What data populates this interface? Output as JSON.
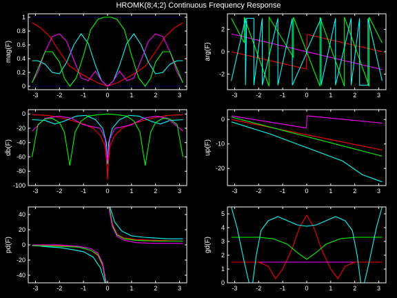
{
  "figure": {
    "title": "HROMK(8;4;2) Continuous Frequency Response",
    "background": "#000000",
    "axes_color": "#ffffff"
  },
  "series_colors": {
    "cyan": "#00ffff",
    "red": "#ff0000",
    "green": "#00ff00",
    "magenta": "#ff00ff",
    "blue": "#0000ff"
  },
  "chart_data": [
    {
      "id": "mag",
      "type": "line",
      "ylabel": "mag(F)",
      "xlim": [
        -3.3,
        3.3
      ],
      "ylim": [
        -0.05,
        1.05
      ],
      "xticks": [
        -3,
        -2,
        -1,
        0,
        1,
        2,
        3
      ],
      "yticks": [
        0,
        0.2,
        0.4,
        0.6,
        0.8,
        1
      ],
      "ytick_labels": [
        "0",
        "0.2",
        "0.4",
        "0.6",
        "0.8",
        "1"
      ],
      "series": [
        {
          "color": "#0000ff",
          "x": [
            -3.14,
            3.14
          ],
          "y": [
            1.0,
            1.0
          ]
        },
        {
          "color": "#0000ff",
          "x": [
            -3.14,
            3.14
          ],
          "y": [
            0.0,
            0.0
          ]
        },
        {
          "color": "#ff0000",
          "x": [
            -3.14,
            -2.8,
            -2.4,
            -2.0,
            -1.6,
            -1.2,
            -0.8,
            -0.4,
            0,
            0.4,
            0.8,
            1.2,
            1.6,
            2.0,
            2.4,
            2.8,
            3.14
          ],
          "y": [
            0.92,
            0.85,
            0.72,
            0.5,
            0.3,
            0.2,
            0.12,
            0.05,
            0.0,
            0.05,
            0.12,
            0.2,
            0.3,
            0.5,
            0.72,
            0.85,
            0.92
          ]
        },
        {
          "color": "#00ffff",
          "x": [
            -3.14,
            -2.9,
            -2.6,
            -2.3,
            -2.0,
            -1.7,
            -1.4,
            -1.1,
            -0.8,
            -0.5,
            -0.25,
            0,
            0.25,
            0.5,
            0.8,
            1.1,
            1.4,
            1.7,
            2.0,
            2.3,
            2.6,
            2.9,
            3.14
          ],
          "y": [
            0.37,
            0.37,
            0.32,
            0.2,
            0.18,
            0.35,
            0.6,
            0.76,
            0.62,
            0.3,
            0.08,
            0.0,
            0.08,
            0.3,
            0.62,
            0.76,
            0.6,
            0.35,
            0.18,
            0.2,
            0.32,
            0.37,
            0.37
          ]
        },
        {
          "color": "#ff00ff",
          "x": [
            -3.14,
            -2.9,
            -2.6,
            -2.3,
            -2.0,
            -1.7,
            -1.4,
            -1.1,
            -0.8,
            -0.5,
            -0.25,
            0,
            0.25,
            0.5,
            0.8,
            1.1,
            1.4,
            1.7,
            2.0,
            2.3,
            2.6,
            2.9,
            3.14
          ],
          "y": [
            0.05,
            0.2,
            0.5,
            0.72,
            0.76,
            0.65,
            0.38,
            0.12,
            0.08,
            0.22,
            0.08,
            0.0,
            0.08,
            0.22,
            0.08,
            0.12,
            0.38,
            0.65,
            0.76,
            0.72,
            0.5,
            0.2,
            0.05
          ]
        },
        {
          "color": "#00ff00",
          "x": [
            -3.14,
            -2.9,
            -2.6,
            -2.3,
            -2.0,
            -1.8,
            -1.57,
            -1.3,
            -1.0,
            -0.7,
            -0.4,
            -0.15,
            0,
            0.15,
            0.4,
            0.7,
            1.0,
            1.3,
            1.57,
            1.8,
            2.0,
            2.3,
            2.6,
            2.9,
            3.14
          ],
          "y": [
            0.05,
            0.25,
            0.5,
            0.5,
            0.35,
            0.12,
            0.0,
            0.12,
            0.45,
            0.82,
            0.97,
            1.0,
            1.0,
            1.0,
            0.97,
            0.82,
            0.45,
            0.12,
            0.0,
            0.12,
            0.35,
            0.5,
            0.5,
            0.25,
            0.05
          ]
        }
      ]
    },
    {
      "id": "arg",
      "type": "line",
      "ylabel": "arg(F)",
      "xlim": [
        -3.3,
        3.3
      ],
      "ylim": [
        -3.4,
        3.4
      ],
      "xticks": [
        -3,
        -2,
        -1,
        0,
        1,
        2,
        3
      ],
      "yticks": [
        -2,
        0,
        2
      ],
      "ytick_labels": [
        "-2",
        "0",
        "2"
      ],
      "series": [
        {
          "color": "#ff0000",
          "x": [
            -3.14,
            -0.02,
            0.02,
            3.14
          ],
          "y": [
            0.0,
            -1.55,
            1.55,
            0.0
          ]
        },
        {
          "color": "#ff00ff",
          "x": [
            -3.14,
            3.14
          ],
          "y": [
            1.6,
            -1.6
          ]
        },
        {
          "color": "#00ff00",
          "x": [
            -3.14,
            -2.6,
            -2.6,
            -1.57,
            -1.57,
            -0.55,
            -0.55,
            0.0,
            0.55,
            0.55,
            1.57,
            1.57,
            2.6,
            2.6,
            3.14
          ],
          "y": [
            3.0,
            0.8,
            3.1,
            -3.1,
            3.1,
            -0.5,
            3.1,
            0.0,
            -3.1,
            3.1,
            -3.1,
            3.1,
            -3.1,
            3.1,
            0.8
          ]
        },
        {
          "color": "#00ffff",
          "x": [
            -3.14,
            -2.55,
            -2.55,
            -2.5,
            -2.2,
            -2.2,
            -1.85,
            -1.85,
            -1.2,
            -1.2,
            -0.6,
            -0.6,
            -0.02,
            0.02,
            0.6,
            0.6,
            1.2,
            1.2,
            1.85,
            1.85,
            2.2,
            2.2,
            2.5,
            2.55,
            2.55,
            3.14
          ],
          "y": [
            -2.6,
            3.0,
            -3.0,
            3.0,
            3.0,
            -3.0,
            3.0,
            -3.0,
            3.0,
            -3.0,
            3.0,
            -3.0,
            -0.2,
            0.2,
            3.0,
            -3.0,
            3.0,
            -3.0,
            3.0,
            -3.0,
            3.0,
            -3.0,
            -3.0,
            -3.0,
            3.0,
            -2.6
          ]
        }
      ]
    },
    {
      "id": "db",
      "type": "line",
      "ylabel": "db(F)",
      "xlim": [
        -3.3,
        3.3
      ],
      "ylim": [
        -100,
        6
      ],
      "xticks": [
        -3,
        -2,
        -1,
        0,
        1,
        2,
        3
      ],
      "yticks": [
        -100,
        -80,
        -60,
        -40,
        -20,
        0
      ],
      "ytick_labels": [
        "-100",
        "-80",
        "-60",
        "-40",
        "-20",
        "0"
      ],
      "series": [
        {
          "color": "#ff0000",
          "x": [
            -3.14,
            -2.5,
            -2.0,
            -1.5,
            -1.0,
            -0.6,
            -0.3,
            -0.1,
            -0.02,
            0,
            0.02,
            0.1,
            0.3,
            0.6,
            1.0,
            1.5,
            2.0,
            2.5,
            3.14
          ],
          "y": [
            -1,
            -2,
            -5,
            -9,
            -14,
            -20,
            -30,
            -45,
            -75,
            -92,
            -75,
            -45,
            -30,
            -20,
            -14,
            -9,
            -5,
            -2,
            -1
          ]
        },
        {
          "color": "#00ffff",
          "x": [
            -3.14,
            -2.6,
            -2.2,
            -1.8,
            -1.3,
            -0.9,
            -0.5,
            -0.2,
            -0.05,
            0,
            0.05,
            0.2,
            0.5,
            0.9,
            1.3,
            1.8,
            2.2,
            2.6,
            3.14
          ],
          "y": [
            -8,
            -9,
            -14,
            -10,
            -3,
            -2,
            -8,
            -20,
            -40,
            -70,
            -40,
            -20,
            -8,
            -2,
            -3,
            -10,
            -14,
            -9,
            -8
          ]
        },
        {
          "color": "#ff00ff",
          "x": [
            -3.14,
            -2.6,
            -2.0,
            -1.5,
            -1.0,
            -0.6,
            -0.3,
            -0.1,
            -0.02,
            0,
            0.02,
            0.1,
            0.3,
            0.6,
            1.0,
            1.5,
            2.0,
            2.5,
            3.14
          ],
          "y": [
            -24,
            -6,
            -3,
            -6,
            -15,
            -18,
            -20,
            -35,
            -60,
            -65,
            -60,
            -35,
            -20,
            -18,
            -15,
            -6,
            -3,
            -6,
            -24
          ]
        },
        {
          "color": "#00ff00",
          "x": [
            -3.14,
            -2.9,
            -2.6,
            -2.3,
            -2.0,
            -1.8,
            -1.57,
            -1.35,
            -1.1,
            -0.8,
            -0.4,
            0,
            0.4,
            0.8,
            1.1,
            1.35,
            1.57,
            1.8,
            2.0,
            2.3,
            2.6,
            2.9,
            3.14
          ],
          "y": [
            -60,
            -15,
            -7,
            -6,
            -12,
            -25,
            -72,
            -25,
            -10,
            -3,
            -1,
            0,
            -1,
            -3,
            -10,
            -25,
            -72,
            -25,
            -12,
            -6,
            -7,
            -15,
            -60
          ]
        }
      ]
    },
    {
      "id": "up",
      "type": "line",
      "ylabel": "up(F)",
      "xlim": [
        -3.3,
        3.3
      ],
      "ylim": [
        -27,
        4
      ],
      "xticks": [
        -3,
        -2,
        -1,
        0,
        1,
        2,
        3
      ],
      "yticks": [
        -20,
        -10,
        0
      ],
      "ytick_labels": [
        "-20",
        "-10",
        "0"
      ],
      "series": [
        {
          "color": "#ff00ff",
          "x": [
            -3.14,
            -0.02,
            0.02,
            3.14
          ],
          "y": [
            1.5,
            -3.5,
            1.5,
            -1.5
          ]
        },
        {
          "color": "#ff0000",
          "x": [
            -3.14,
            3.14
          ],
          "y": [
            0.0,
            -12.5
          ]
        },
        {
          "color": "#00ff00",
          "x": [
            -3.14,
            3.14
          ],
          "y": [
            1.0,
            -15.0
          ]
        },
        {
          "color": "#00ffff",
          "x": [
            -3.14,
            -1.5,
            0,
            1.5,
            2.3,
            3.14
          ],
          "y": [
            -1.0,
            -6.0,
            -11.5,
            -17.0,
            -22.5,
            -25.5
          ]
        }
      ]
    },
    {
      "id": "pd",
      "type": "line",
      "ylabel": "pd(F)",
      "xlim": [
        -3.3,
        3.3
      ],
      "ylim": [
        -50,
        50
      ],
      "xticks": [
        -3,
        -2,
        -1,
        0,
        1,
        2,
        3
      ],
      "yticks": [
        -40,
        -20,
        0,
        20,
        40
      ],
      "ytick_labels": [
        "-40",
        "-20",
        "0",
        "20",
        "40"
      ],
      "series": [
        {
          "color": "#00ffff",
          "x": [
            -3.14,
            -2.5,
            -2.0,
            -1.5,
            -1.0,
            -0.6,
            -0.3,
            -0.1
          ],
          "y": [
            -0.5,
            -2.5,
            -3.5,
            -6,
            -9,
            -16,
            -30,
            -50
          ]
        },
        {
          "color": "#00ffff",
          "x": [
            0.1,
            0.3,
            0.6,
            1.0,
            1.5,
            2.0,
            2.5,
            3.14
          ],
          "y": [
            50,
            30,
            18,
            12,
            10,
            9,
            8,
            8
          ]
        },
        {
          "color": "#ff0000",
          "x": [
            -3.14,
            -2.0,
            -1.2,
            -0.7,
            -0.4,
            -0.2,
            -0.08
          ],
          "y": [
            0,
            -1,
            -3,
            -7,
            -14,
            -28,
            -50
          ]
        },
        {
          "color": "#ff0000",
          "x": [
            0.08,
            0.2,
            0.4,
            0.7,
            1.2,
            2.0,
            3.14
          ],
          "y": [
            50,
            28,
            14,
            9,
            7,
            6,
            5
          ]
        },
        {
          "color": "#00ff00",
          "x": [
            -3.14,
            -2.0,
            -1.2,
            -0.7,
            -0.4,
            -0.2,
            -0.08
          ],
          "y": [
            -1,
            -2,
            -3,
            -7,
            -13,
            -26,
            -50
          ]
        },
        {
          "color": "#00ff00",
          "x": [
            0.08,
            0.2,
            0.4,
            0.7,
            1.2,
            2.0,
            3.14
          ],
          "y": [
            50,
            26,
            13,
            8,
            6,
            5,
            5
          ]
        },
        {
          "color": "#ff00ff",
          "x": [
            -3.14,
            -2.0,
            -1.2,
            -0.7,
            -0.4,
            -0.2,
            -0.05
          ],
          "y": [
            0,
            0,
            -2,
            -5,
            -11,
            -24,
            -50
          ]
        },
        {
          "color": "#ff00ff",
          "x": [
            0.05,
            0.2,
            0.4,
            0.7,
            1.2,
            2.0,
            3.14
          ],
          "y": [
            50,
            24,
            11,
            6,
            3,
            2,
            2
          ]
        }
      ]
    },
    {
      "id": "gd",
      "type": "line",
      "ylabel": "gd(F)",
      "xlim": [
        -3.3,
        3.3
      ],
      "ylim": [
        0,
        5.5
      ],
      "xticks": [
        -3,
        -2,
        -1,
        0,
        1,
        2,
        3
      ],
      "yticks": [
        0,
        1,
        2,
        3,
        4,
        5
      ],
      "ytick_labels": [
        "0",
        "1",
        "2",
        "3",
        "4",
        "5"
      ],
      "series": [
        {
          "color": "#ff00ff",
          "x": [
            -3.14,
            3.14
          ],
          "y": [
            1.5,
            1.5
          ]
        },
        {
          "color": "#ff0000",
          "x": [
            -3.14,
            -2.0,
            -1.6,
            -1.3,
            -1.0,
            -0.6,
            -0.3,
            0,
            0.3,
            0.6,
            1.0,
            1.3,
            1.6,
            2.0,
            3.14
          ],
          "y": [
            1.5,
            1.5,
            1.2,
            0.3,
            1.0,
            2.5,
            4.0,
            4.9,
            4.0,
            2.5,
            1.0,
            0.3,
            1.2,
            1.5,
            1.5
          ]
        },
        {
          "color": "#00ff00",
          "x": [
            -3.14,
            -2.0,
            -1.4,
            -0.8,
            -0.4,
            0,
            0.4,
            0.8,
            1.4,
            2.0,
            3.14
          ],
          "y": [
            3.3,
            3.3,
            3.2,
            2.8,
            2.2,
            1.7,
            2.2,
            2.8,
            3.2,
            3.3,
            3.3
          ]
        },
        {
          "color": "#00ffff",
          "x": [
            -3.14,
            -2.9,
            -2.6,
            -2.4,
            -2.25,
            -2.1,
            -1.9,
            -1.6,
            -1.2,
            -0.8,
            -0.4,
            0,
            0.4,
            0.8,
            1.2,
            1.6,
            1.9,
            2.1,
            2.25,
            2.4,
            2.6,
            2.9,
            3.14
          ],
          "y": [
            5.5,
            4.0,
            1.5,
            0.0,
            0.0,
            2.0,
            3.8,
            4.5,
            4.8,
            4.5,
            4.2,
            4.1,
            4.2,
            4.5,
            4.8,
            4.5,
            3.8,
            2.0,
            0.0,
            0.0,
            1.5,
            4.0,
            5.5
          ]
        }
      ]
    }
  ]
}
